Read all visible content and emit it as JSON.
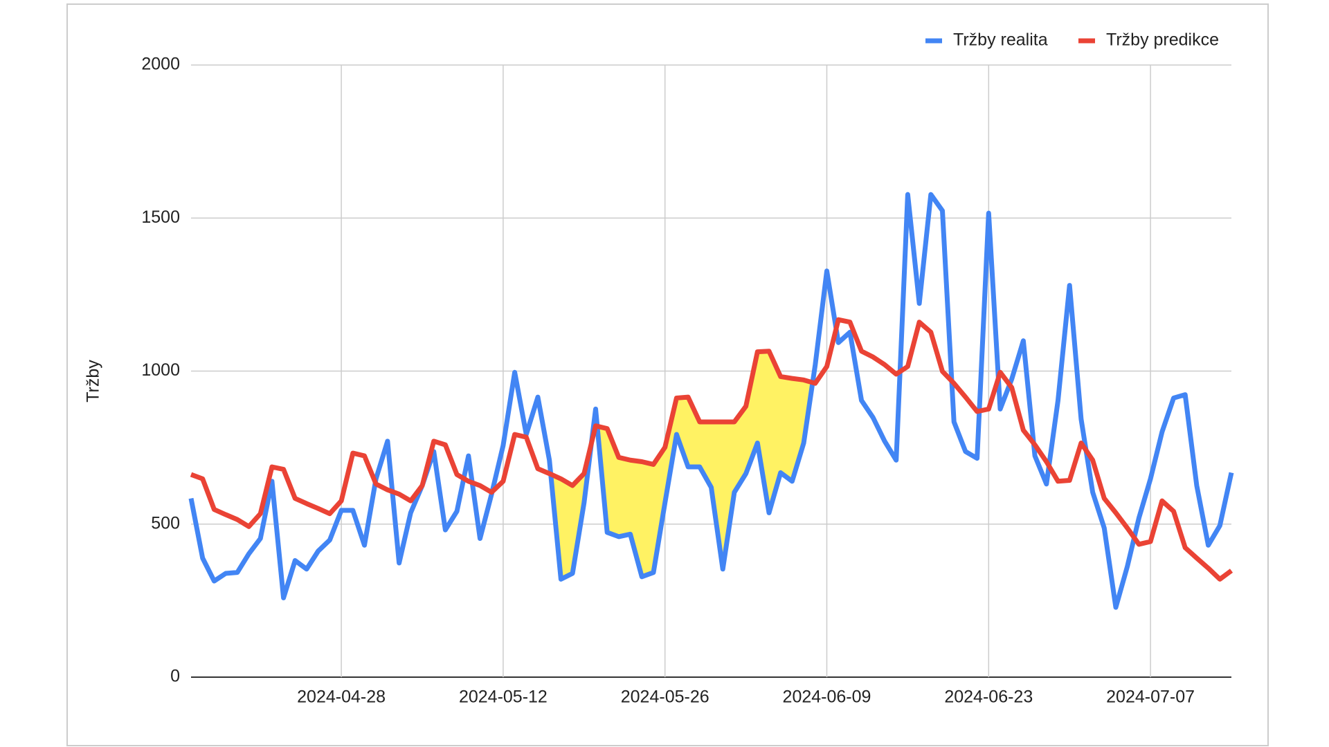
{
  "chart_data": {
    "type": "line",
    "y_label": "Tržby",
    "x": [
      "2024-04-15",
      "2024-04-16",
      "2024-04-17",
      "2024-04-18",
      "2024-04-19",
      "2024-04-20",
      "2024-04-21",
      "2024-04-22",
      "2024-04-23",
      "2024-04-24",
      "2024-04-25",
      "2024-04-26",
      "2024-04-27",
      "2024-04-28",
      "2024-04-29",
      "2024-04-30",
      "2024-05-01",
      "2024-05-02",
      "2024-05-03",
      "2024-05-04",
      "2024-05-05",
      "2024-05-06",
      "2024-05-07",
      "2024-05-08",
      "2024-05-09",
      "2024-05-10",
      "2024-05-11",
      "2024-05-12",
      "2024-05-13",
      "2024-05-14",
      "2024-05-15",
      "2024-05-16",
      "2024-05-17",
      "2024-05-18",
      "2024-05-19",
      "2024-05-20",
      "2024-05-21",
      "2024-05-22",
      "2024-05-23",
      "2024-05-24",
      "2024-05-25",
      "2024-05-26",
      "2024-05-27",
      "2024-05-28",
      "2024-05-29",
      "2024-05-30",
      "2024-05-31",
      "2024-06-01",
      "2024-06-02",
      "2024-06-03",
      "2024-06-04",
      "2024-06-05",
      "2024-06-06",
      "2024-06-07",
      "2024-06-08",
      "2024-06-09",
      "2024-06-10",
      "2024-06-11",
      "2024-06-12",
      "2024-06-13",
      "2024-06-14",
      "2024-06-15",
      "2024-06-16",
      "2024-06-17",
      "2024-06-18",
      "2024-06-19",
      "2024-06-20",
      "2024-06-21",
      "2024-06-22",
      "2024-06-23",
      "2024-06-24",
      "2024-06-25",
      "2024-06-26",
      "2024-06-27",
      "2024-06-28",
      "2024-06-29",
      "2024-06-30",
      "2024-07-01",
      "2024-07-02",
      "2024-07-03",
      "2024-07-04",
      "2024-07-05",
      "2024-07-06",
      "2024-07-07",
      "2024-07-08",
      "2024-07-09",
      "2024-07-10",
      "2024-07-11",
      "2024-07-12",
      "2024-07-13",
      "2024-07-14"
    ],
    "xticks": [
      "2024-04-28",
      "2024-05-12",
      "2024-05-26",
      "2024-06-09",
      "2024-06-23",
      "2024-07-07"
    ],
    "series": [
      {
        "name": "Tržby realita",
        "color": "#4285f4",
        "values": [
          584,
          389,
          314,
          339,
          342,
          403,
          453,
          640,
          259,
          381,
          353,
          412,
          448,
          545,
          545,
          431,
          648,
          771,
          373,
          537,
          626,
          737,
          481,
          542,
          723,
          453,
          598,
          757,
          996,
          793,
          915,
          709,
          320,
          339,
          570,
          876,
          473,
          459,
          467,
          328,
          342,
          570,
          793,
          687,
          687,
          620,
          353,
          604,
          665,
          765,
          537,
          668,
          640,
          765,
          1021,
          1327,
          1093,
          1127,
          904,
          848,
          771,
          709,
          1577,
          1221,
          1577,
          1524,
          834,
          737,
          715,
          1516,
          876,
          974,
          1099,
          723,
          631,
          904,
          1280,
          843,
          604,
          487,
          228,
          362,
          520,
          648,
          801,
          912,
          923,
          626,
          431,
          495,
          668
        ]
      },
      {
        "name": "Tržby predikce",
        "color": "#ea4335",
        "values": [
          662,
          648,
          548,
          531,
          515,
          492,
          534,
          687,
          679,
          584,
          567,
          551,
          534,
          576,
          732,
          723,
          631,
          612,
          598,
          576,
          626,
          771,
          759,
          662,
          640,
          626,
          604,
          640,
          793,
          784,
          681,
          665,
          648,
          626,
          665,
          821,
          812,
          718,
          709,
          704,
          695,
          751,
          912,
          915,
          834,
          834,
          834,
          834,
          885,
          1063,
          1065,
          982,
          976,
          971,
          960,
          1015,
          1168,
          1160,
          1065,
          1046,
          1021,
          990,
          1015,
          1160,
          1127,
          999,
          960,
          915,
          868,
          876,
          996,
          946,
          807,
          759,
          704,
          640,
          643,
          765,
          709,
          584,
          537,
          487,
          434,
          443,
          576,
          542,
          423,
          389,
          356,
          320,
          348
        ]
      }
    ],
    "ylim": [
      0,
      2000
    ],
    "yticks": [
      0,
      500,
      1000,
      1500,
      2000
    ],
    "grid": true,
    "legend": "top-right"
  }
}
